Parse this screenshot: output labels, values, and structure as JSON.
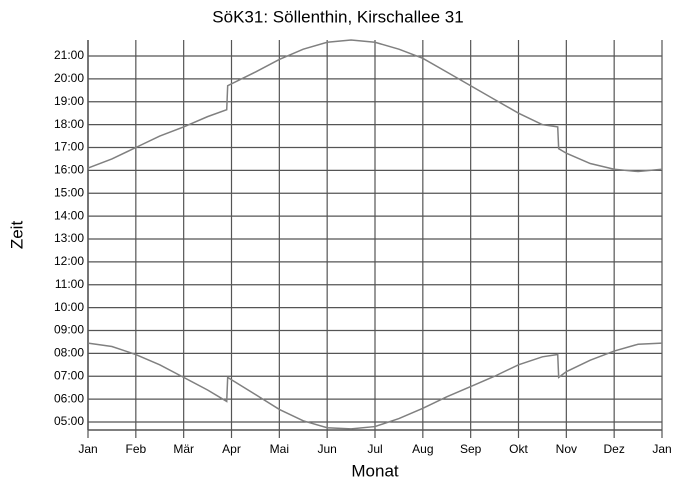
{
  "chart_data": {
    "type": "line",
    "title": "SöK31: Söllenthin, Kirschallee 31",
    "x_label": "Monat",
    "y_label": "Zeit",
    "x": [
      0,
      0.5,
      1,
      1.5,
      2,
      2.5,
      2.9,
      2.92,
      3.5,
      4,
      4.5,
      5,
      5.5,
      6,
      6.5,
      7,
      7.5,
      8,
      8.5,
      9,
      9.5,
      9.82,
      9.84,
      10,
      10.5,
      11,
      11.5,
      12
    ],
    "series": [
      {
        "color": "#808080",
        "values": [
          16.1,
          16.5,
          17.0,
          17.5,
          17.9,
          18.35,
          18.65,
          19.7,
          20.3,
          20.85,
          21.3,
          21.6,
          21.7,
          21.6,
          21.3,
          20.9,
          20.3,
          19.7,
          19.1,
          18.5,
          18.0,
          17.9,
          16.95,
          16.75,
          16.3,
          16.05,
          15.95,
          16.05
        ]
      },
      {
        "color": "#808080",
        "values": [
          8.45,
          8.3,
          7.95,
          7.5,
          6.95,
          6.4,
          5.9,
          6.95,
          6.2,
          5.55,
          5.05,
          4.75,
          4.7,
          4.8,
          5.15,
          5.6,
          6.1,
          6.55,
          7.0,
          7.5,
          7.85,
          7.95,
          6.95,
          7.2,
          7.7,
          8.1,
          8.4,
          8.45
        ]
      }
    ],
    "xlim": [
      0,
      12
    ],
    "xticks": [
      {
        "value": 0,
        "label": "Jan"
      },
      {
        "value": 1,
        "label": "Feb"
      },
      {
        "value": 2,
        "label": "Mär"
      },
      {
        "value": 3,
        "label": "Apr"
      },
      {
        "value": 4,
        "label": "Mai"
      },
      {
        "value": 5,
        "label": "Jun"
      },
      {
        "value": 6,
        "label": "Jul"
      },
      {
        "value": 7,
        "label": "Aug"
      },
      {
        "value": 8,
        "label": "Sep"
      },
      {
        "value": 9,
        "label": "Okt"
      },
      {
        "value": 10,
        "label": "Nov"
      },
      {
        "value": 11,
        "label": "Dez"
      },
      {
        "value": 12,
        "label": "Jan"
      }
    ],
    "ylim": [
      4.65,
      21.7
    ],
    "yticks": [
      {
        "value": 5,
        "label": "05:00"
      },
      {
        "value": 6,
        "label": "06:00"
      },
      {
        "value": 7,
        "label": "07:00"
      },
      {
        "value": 8,
        "label": "08:00"
      },
      {
        "value": 9,
        "label": "09:00"
      },
      {
        "value": 10,
        "label": "10:00"
      },
      {
        "value": 11,
        "label": "11:00"
      },
      {
        "value": 12,
        "label": "12:00"
      },
      {
        "value": 13,
        "label": "13:00"
      },
      {
        "value": 14,
        "label": "14:00"
      },
      {
        "value": 15,
        "label": "15:00"
      },
      {
        "value": 16,
        "label": "16:00"
      },
      {
        "value": 17,
        "label": "17:00"
      },
      {
        "value": 18,
        "label": "18:00"
      },
      {
        "value": 19,
        "label": "19:00"
      },
      {
        "value": 20,
        "label": "20:00"
      },
      {
        "value": 21,
        "label": "21:00"
      }
    ],
    "grid": true
  }
}
